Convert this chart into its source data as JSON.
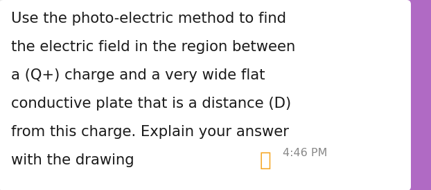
{
  "bg_color": "#e8e8e8",
  "bubble_color": "#ffffff",
  "text_lines": [
    "Use the photo-electric method to find",
    "the electric field in the region between",
    "a (Q+) charge and a very wide flat",
    "conductive plate that is a distance (D)",
    "from this charge. Explain your answer",
    "with the drawing"
  ],
  "timestamp": "4:46 PM",
  "text_color": "#1a1a1a",
  "timestamp_color": "#888888",
  "font_size": 15.2,
  "timestamp_font_size": 11.5,
  "emoji_color": "#f5a623",
  "top_right_color": "#b06ac4"
}
